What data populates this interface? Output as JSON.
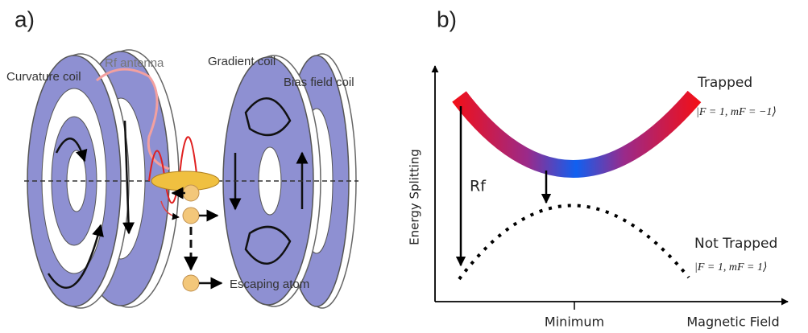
{
  "panel_a": {
    "label": "a)",
    "labels": [
      "Curvature coil",
      "Rf antenna",
      "Gradient coil",
      "Bias field coil",
      "Escaping atom"
    ]
  },
  "panel_b": {
    "label": "b)",
    "y_axis_label": "Energy Splitting",
    "x_axis_label": "Magnetic Field",
    "x_tick": "Minimum",
    "transition_label": "Rf",
    "upper_state": {
      "name": "Trapped",
      "ket": "|F = 1, mF = −1⟩"
    },
    "lower_state": {
      "name": "Not Trapped",
      "ket": "|F = 1, mF = 1⟩"
    }
  }
}
